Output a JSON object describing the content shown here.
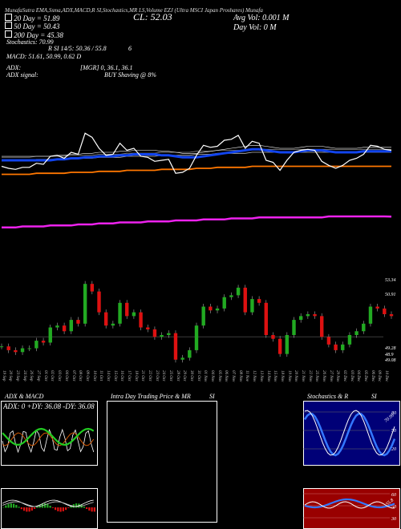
{
  "header": {
    "row1": "MunafaSutra EMA,Ssma,ADX,MACD,R SI,Stochastics,MR LS,Volume EZJ (Ultra MSCI Japan Proshares) Munafa",
    "ema20": "20 Day = 51.89",
    "ema50": "50 Day = 50.43",
    "ema200": "200 Day = 45.38",
    "stoch": "Stochastics: 70.99",
    "rsi": "R SI 14/5: 50.36 / 55.8",
    "six": "6",
    "macd": "MACD: 51.61, 50.99, 0.62 D",
    "adx": "ADX:",
    "adx_val": "[MGR] 0, 36.1, 36.1",
    "adx_signal": "ADX signal:",
    "signal_val": "BUY Shaving @ 8%",
    "close": "CL: 52.03",
    "avg_vol": "Avg Vol: 0.001 M",
    "day_vol": "Day Vol: 0  M"
  },
  "price_labels": [
    "53.34",
    "50.91",
    "49.28",
    "48.9",
    "49.08"
  ],
  "dates": [
    "17 Sep",
    "19 Sep",
    "20 Sep",
    "23 Sep",
    "24 Sep",
    "26 Sep",
    "27 Sep",
    "01 Oct",
    "02 Oct",
    "03 Oct",
    "04 Oct",
    "07 Oct",
    "08 Oct",
    "09 Oct",
    "10 Oct",
    "11 Oct",
    "14 Oct",
    "15 Oct",
    "16 Oct",
    "17 Oct",
    "18 Oct",
    "21 Oct",
    "22 Oct",
    "23 Oct",
    "24 Oct",
    "25 Oct",
    "28 Oct",
    "29 Oct",
    "30 Oct",
    "31 Oct",
    "01 Nov",
    "04 Nov",
    "05 Nov",
    "06 Nov",
    "07 Nov",
    "08 Nov",
    "11 Nov",
    "12 Nov",
    "13 Nov",
    "14 Nov",
    "15 Nov",
    "18 Nov",
    "19 Nov",
    "20 Nov",
    "21 Nov",
    "22 Nov",
    "25 Nov",
    "26 Nov",
    "27 Nov",
    "29 Nov",
    "02 Dec",
    "03 Dec",
    "04 Dec",
    "05 Dec",
    "06 Dec",
    "09 Dec",
    "10 Dec"
  ],
  "panels": {
    "adx_title": "ADX  & MACD",
    "adx_readout": "ADX: 0  +DY: 36.08  -DY: 36.08",
    "intraday_title": "Intra  Day Trading Price  & MR",
    "si_label": "SI",
    "stoch_title": "Stochastics & R",
    "stoch_si": "SI",
    "stoch_ticks": [
      "80",
      "50",
      "20"
    ],
    "stoch_value": "70.99",
    "rsi_ticks": [
      "60",
      "50",
      "30"
    ],
    "rsi_value": "55.8"
  },
  "colors": {
    "up": "#22aa22",
    "down": "#dd1111",
    "ema_blue": "#1144ee",
    "ema_orange": "#ff7700",
    "ema_magenta": "#ee22ee",
    "stoch_bg": "#000077",
    "rsi_bg": "#990000"
  },
  "chart_data": {
    "type": "candlestick",
    "title": "EZJ (Ultra MSCI Japan Proshares)",
    "series": [
      {
        "name": "Price",
        "values": [
          50.4,
          50.2,
          50.1,
          50.3,
          50.3,
          50.7,
          50.6,
          51.4,
          51.5,
          51.2,
          51.8,
          51.6,
          53.7,
          53.3,
          52.2,
          51.5,
          51.6,
          52.7,
          52.0,
          52.2,
          51.4,
          51.3,
          50.9,
          51.0,
          51.1,
          49.7,
          49.8,
          50.2,
          51.5,
          52.5,
          52.3,
          52.4,
          53.0,
          53.1,
          53.5,
          52.2,
          52.9,
          52.7,
          51.0,
          50.8,
          50.0,
          51.0,
          51.8,
          52.0,
          52.1,
          52.0,
          50.9,
          50.5,
          50.2,
          50.5,
          51.0,
          51.2,
          51.6,
          52.5,
          52.4,
          52.1,
          52.0
        ]
      },
      {
        "name": "20 Day",
        "values": [
          51.0,
          51.0,
          51.0,
          51.0,
          51.0,
          51.0,
          51.0,
          51.0,
          51.1,
          51.1,
          51.2,
          51.2,
          51.3,
          51.3,
          51.4,
          51.4,
          51.4,
          51.5,
          51.5,
          51.6,
          51.6,
          51.6,
          51.6,
          51.5,
          51.5,
          51.4,
          51.3,
          51.3,
          51.3,
          51.4,
          51.5,
          51.6,
          51.7,
          51.8,
          51.9,
          52.0,
          52.1,
          52.1,
          52.0,
          51.9,
          51.8,
          51.8,
          51.8,
          51.9,
          52.0,
          52.0,
          52.0,
          51.9,
          51.8,
          51.8,
          51.8,
          51.8,
          51.9,
          51.9,
          51.9,
          51.9,
          51.9
        ]
      },
      {
        "name": "50 Day",
        "values": [
          49.6,
          49.6,
          49.6,
          49.6,
          49.6,
          49.7,
          49.7,
          49.7,
          49.7,
          49.7,
          49.8,
          49.8,
          49.8,
          49.8,
          49.9,
          49.9,
          49.9,
          49.9,
          50.0,
          50.0,
          50.0,
          50.0,
          50.0,
          50.1,
          50.1,
          50.1,
          50.1,
          50.1,
          50.2,
          50.2,
          50.2,
          50.3,
          50.3,
          50.3,
          50.3,
          50.3,
          50.4,
          50.4,
          50.4,
          50.4,
          50.4,
          50.4,
          50.4,
          50.4,
          50.4,
          50.4,
          50.4,
          50.4,
          50.4,
          50.4,
          50.4,
          50.4,
          50.4,
          50.4,
          50.4,
          50.4,
          50.4
        ]
      },
      {
        "name": "200 Day",
        "values": [
          44.3,
          44.3,
          44.3,
          44.4,
          44.4,
          44.4,
          44.4,
          44.5,
          44.5,
          44.5,
          44.5,
          44.6,
          44.6,
          44.6,
          44.7,
          44.7,
          44.7,
          44.8,
          44.8,
          44.8,
          44.8,
          44.9,
          44.9,
          44.9,
          44.9,
          45.0,
          45.0,
          45.0,
          45.0,
          45.1,
          45.1,
          45.1,
          45.1,
          45.2,
          45.2,
          45.2,
          45.2,
          45.3,
          45.3,
          45.3,
          45.3,
          45.3,
          45.3,
          45.3,
          45.3,
          45.3,
          45.3,
          45.4,
          45.4,
          45.4,
          45.4,
          45.4,
          45.4,
          45.4,
          45.4,
          45.4,
          45.38
        ]
      }
    ]
  }
}
